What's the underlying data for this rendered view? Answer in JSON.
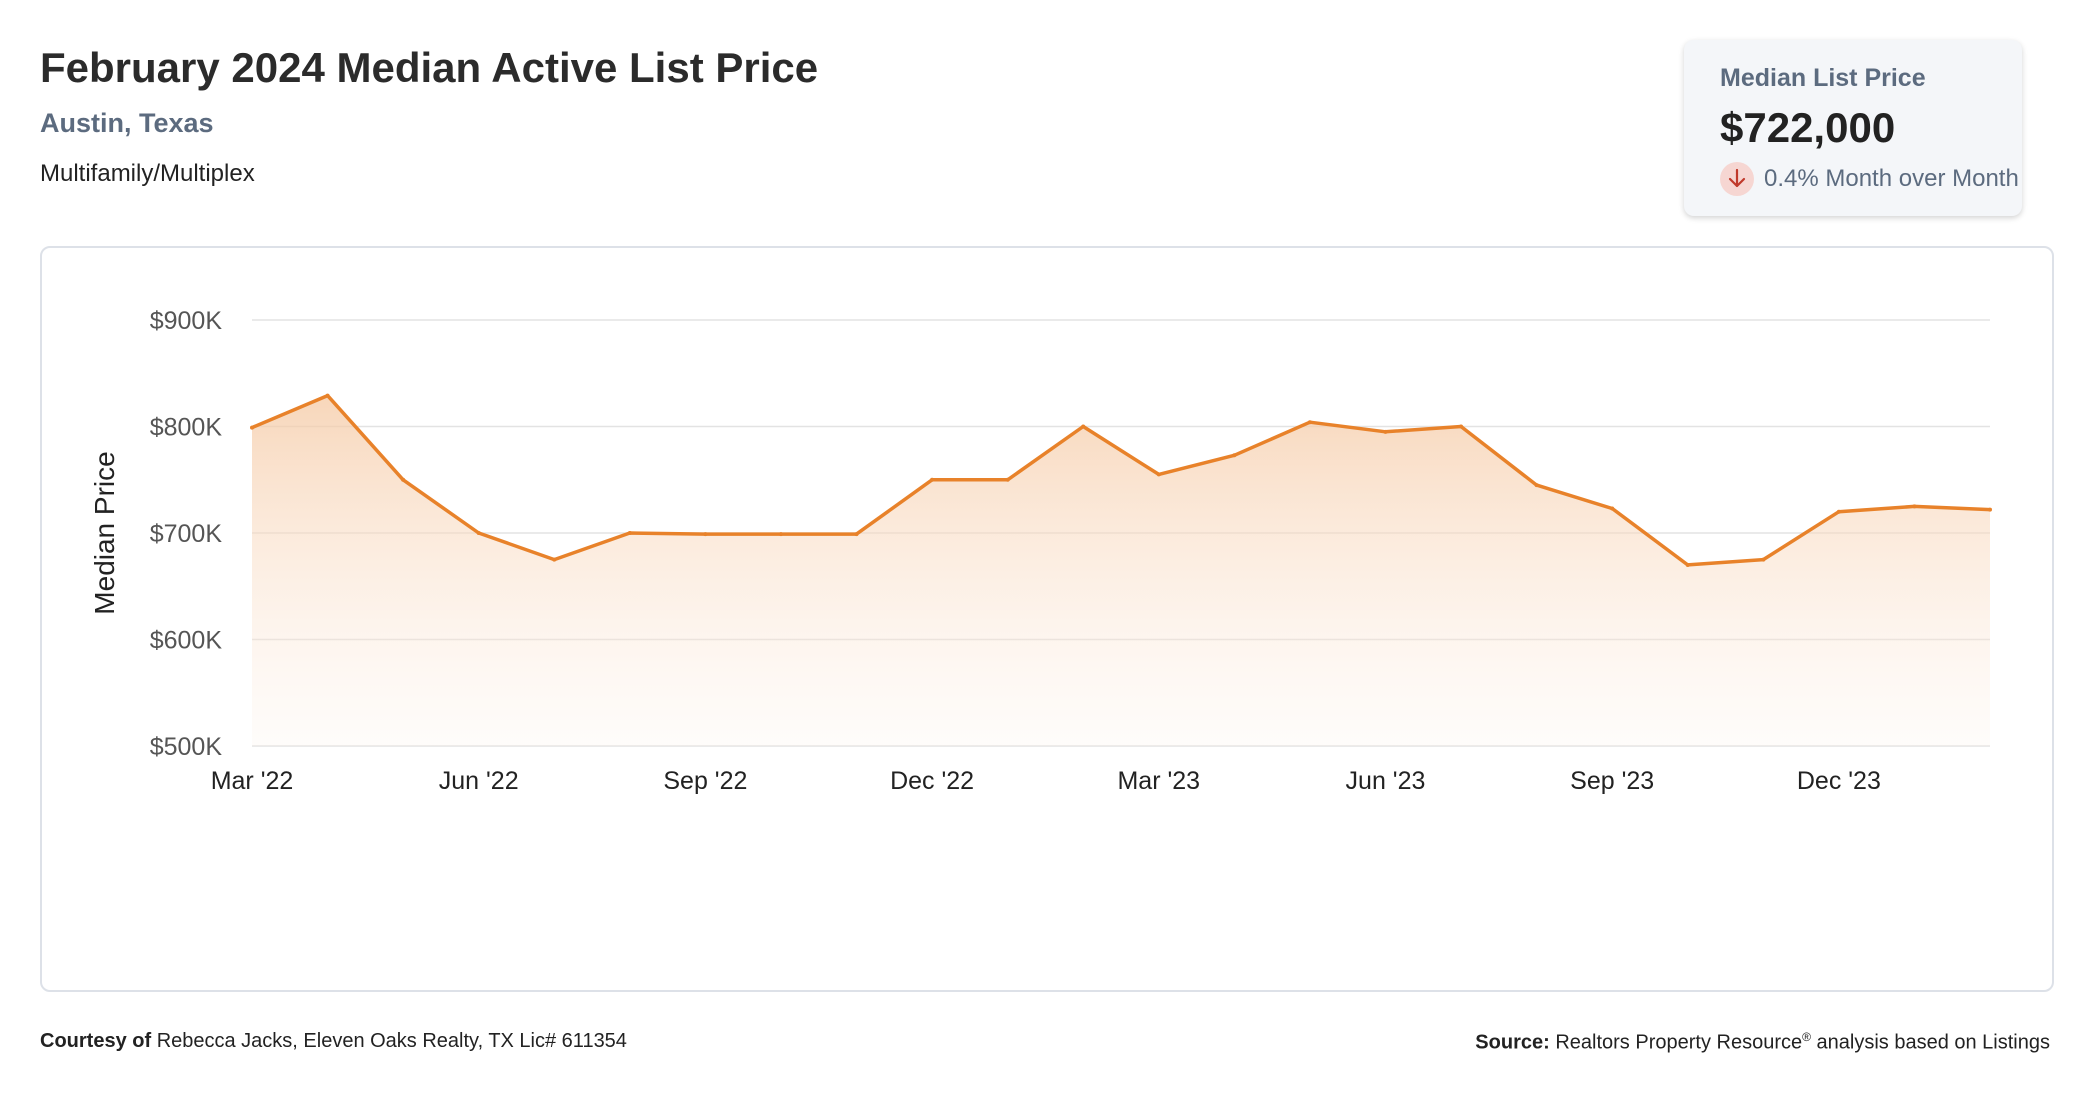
{
  "header": {
    "title": "February 2024 Median Active List Price",
    "location": "Austin, Texas",
    "property_type": "Multifamily/Multiplex"
  },
  "stat_card": {
    "label": "Median List Price",
    "value": "$722,000",
    "change": "0.4% Month over Month",
    "direction_icon": "arrow-down-icon",
    "down_color": "#c0392b"
  },
  "colors": {
    "line": "#e8822a",
    "grid": "#e3e3e3",
    "axis_text": "#555555"
  },
  "chart_data": {
    "type": "area",
    "title": "",
    "xlabel": "",
    "ylabel": "Median Price",
    "ylim": [
      500000,
      900000
    ],
    "y_ticks": [
      {
        "value": 900000,
        "label": "$900K"
      },
      {
        "value": 800000,
        "label": "$800K"
      },
      {
        "value": 700000,
        "label": "$700K"
      },
      {
        "value": 600000,
        "label": "$600K"
      },
      {
        "value": 500000,
        "label": "$500K"
      }
    ],
    "x_ticks": [
      {
        "index": 0,
        "label": "Mar '22"
      },
      {
        "index": 3,
        "label": "Jun '22"
      },
      {
        "index": 6,
        "label": "Sep '22"
      },
      {
        "index": 9,
        "label": "Dec '22"
      },
      {
        "index": 12,
        "label": "Mar '23"
      },
      {
        "index": 15,
        "label": "Jun '23"
      },
      {
        "index": 18,
        "label": "Sep '23"
      },
      {
        "index": 21,
        "label": "Dec '23"
      }
    ],
    "grid": true,
    "categories": [
      "2022-03",
      "2022-04",
      "2022-05",
      "2022-06",
      "2022-07",
      "2022-08",
      "2022-09",
      "2022-10",
      "2022-11",
      "2022-12",
      "2023-01",
      "2023-02",
      "2023-03",
      "2023-04",
      "2023-05",
      "2023-06",
      "2023-07",
      "2023-08",
      "2023-09",
      "2023-10",
      "2023-11",
      "2023-12",
      "2024-01",
      "2024-02"
    ],
    "values": [
      799000,
      829000,
      750000,
      700000,
      675000,
      700000,
      699000,
      699000,
      699000,
      750000,
      750000,
      800000,
      755000,
      773000,
      804000,
      795000,
      800000,
      745000,
      723000,
      670000,
      675000,
      720000,
      725000,
      722000
    ]
  },
  "footer": {
    "courtesy_label": "Courtesy of",
    "courtesy_text": "Rebecca Jacks, Eleven Oaks Realty, TX Lic# 611354",
    "source_label": "Source:",
    "source_text": "Realtors Property Resource",
    "source_mark": "®",
    "source_suffix": "analysis based on Listings"
  }
}
